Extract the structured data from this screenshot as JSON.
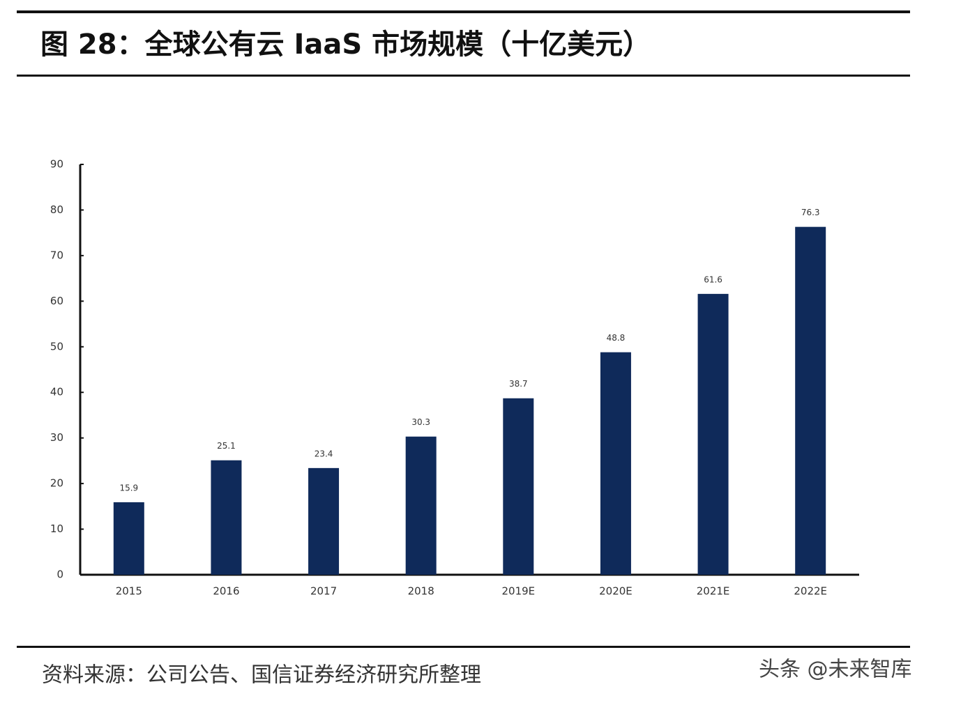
{
  "chart_data": {
    "type": "bar",
    "title": "图 28：全球公有云 IaaS 市场规模（十亿美元）",
    "categories": [
      "2015",
      "2016",
      "2017",
      "2018",
      "2019E",
      "2020E",
      "2021E",
      "2022E"
    ],
    "values": [
      15.9,
      25.1,
      23.4,
      30.3,
      38.7,
      48.8,
      61.6,
      76.3
    ],
    "color": "#0f2a5a",
    "ylim": [
      0,
      90
    ],
    "yticks": [
      0,
      10,
      20,
      30,
      40,
      50,
      60,
      70,
      80,
      90
    ],
    "grid": false,
    "source": "资料来源：公司公告、国信证券经济研究所整理",
    "watermark": "头条 @未来智库"
  }
}
